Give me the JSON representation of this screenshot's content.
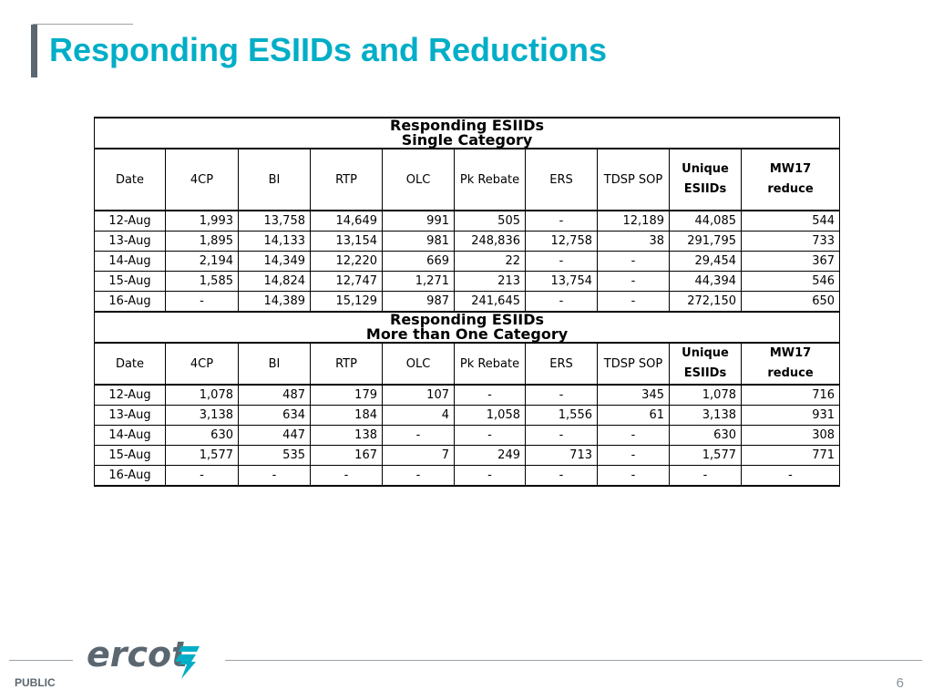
{
  "title": "Responding ESIIDs and Reductions",
  "columns": [
    "Date",
    "4CP",
    "BI",
    "RTP",
    "OLC",
    "Pk Rebate",
    "ERS",
    "TDSP SOP",
    "Unique ESIIDs",
    "MW17 reduce"
  ],
  "column_lines": {
    "unique": [
      "Unique",
      "ESIIDs"
    ],
    "mw17": [
      "MW17",
      "reduce"
    ]
  },
  "sections": [
    {
      "caption_line1": "Responding ESIIDs",
      "caption_line2": "Single Category",
      "rows": [
        [
          "12-Aug",
          "1,993",
          "13,758",
          "14,649",
          "991",
          "505",
          "-",
          "12,189",
          "44,085",
          "544"
        ],
        [
          "13-Aug",
          "1,895",
          "14,133",
          "13,154",
          "981",
          "248,836",
          "12,758",
          "38",
          "291,795",
          "733"
        ],
        [
          "14-Aug",
          "2,194",
          "14,349",
          "12,220",
          "669",
          "22",
          "-",
          "-",
          "29,454",
          "367"
        ],
        [
          "15-Aug",
          "1,585",
          "14,824",
          "12,747",
          "1,271",
          "213",
          "13,754",
          "-",
          "44,394",
          "546"
        ],
        [
          "16-Aug",
          "-",
          "14,389",
          "15,129",
          "987",
          "241,645",
          "-",
          "-",
          "272,150",
          "650"
        ]
      ]
    },
    {
      "caption_line1": "Responding ESIIDs",
      "caption_line2": "More than One Category",
      "rows": [
        [
          "12-Aug",
          "1,078",
          "487",
          "179",
          "107",
          "-",
          "-",
          "345",
          "1,078",
          "716"
        ],
        [
          "13-Aug",
          "3,138",
          "634",
          "184",
          "4",
          "1,058",
          "1,556",
          "61",
          "3,138",
          "931"
        ],
        [
          "14-Aug",
          "630",
          "447",
          "138",
          "-",
          "-",
          "-",
          "-",
          "630",
          "308"
        ],
        [
          "15-Aug",
          "1,577",
          "535",
          "167",
          "7",
          "249",
          "713",
          "-",
          "1,577",
          "771"
        ],
        [
          "16-Aug",
          "-",
          "-",
          "-",
          "-",
          "-",
          "-",
          "-",
          "-",
          "-"
        ]
      ]
    }
  ],
  "footer": {
    "logo_text": "ercot",
    "classification": "PUBLIC",
    "page_number": "6"
  },
  "colors": {
    "title": "#00aec7",
    "accent_bar": "#5b6770",
    "logo": "#5b6770",
    "logo_mark": "#00aec7"
  },
  "icons": [
    "ercot-logo-icon"
  ]
}
